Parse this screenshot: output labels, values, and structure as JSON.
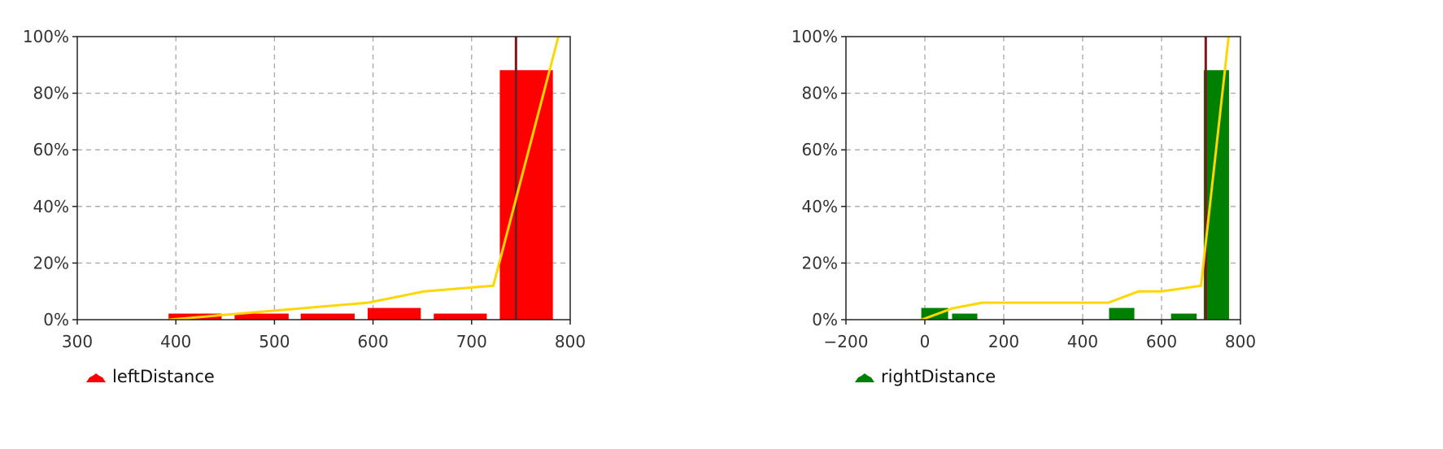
{
  "chart_data": [
    {
      "type": "bar",
      "title": "",
      "xlabel": "",
      "ylabel": "",
      "xlim": [
        300,
        800
      ],
      "ylim": [
        0,
        100
      ],
      "x_ticks": [
        "300",
        "400",
        "500",
        "600",
        "700",
        "800"
      ],
      "y_ticks": [
        "0%",
        "20%",
        "40%",
        "60%",
        "80%",
        "100%"
      ],
      "grid": true,
      "legend": {
        "label": "leftDistance",
        "placement": "bottom-left"
      },
      "bar_color": "#ff0000",
      "cumulative_color": "#ffd700",
      "marker_color": "#7a1a1a",
      "bins": [
        {
          "x0": 393,
          "x1": 446,
          "y": 2
        },
        {
          "x0": 460,
          "x1": 514,
          "y": 2
        },
        {
          "x0": 527,
          "x1": 581,
          "y": 2
        },
        {
          "x0": 595,
          "x1": 648,
          "y": 4
        },
        {
          "x0": 662,
          "x1": 715,
          "y": 2
        },
        {
          "x0": 729,
          "x1": 782,
          "y": 88
        }
      ],
      "cumulative": [
        {
          "x": 393,
          "y": 0
        },
        {
          "x": 460,
          "y": 2
        },
        {
          "x": 527,
          "y": 4
        },
        {
          "x": 595,
          "y": 6
        },
        {
          "x": 652,
          "y": 10
        },
        {
          "x": 722,
          "y": 12
        },
        {
          "x": 788,
          "y": 100
        }
      ],
      "marker_x": 745
    },
    {
      "type": "bar",
      "title": "",
      "xlabel": "",
      "ylabel": "",
      "xlim": [
        -200,
        800
      ],
      "ylim": [
        0,
        100
      ],
      "x_ticks": [
        "−200",
        "0",
        "200",
        "400",
        "600",
        "800"
      ],
      "y_ticks": [
        "0%",
        "20%",
        "40%",
        "60%",
        "80%",
        "100%"
      ],
      "grid": true,
      "legend": {
        "label": "rightDistance",
        "placement": "bottom-left"
      },
      "bar_color": "#008000",
      "cumulative_color": "#ffd700",
      "marker_color": "#7a1a1a",
      "bins": [
        {
          "x0": -8,
          "x1": 58,
          "y": 4
        },
        {
          "x0": 70,
          "x1": 132,
          "y": 2
        },
        {
          "x0": 468,
          "x1": 530,
          "y": 4
        },
        {
          "x0": 625,
          "x1": 688,
          "y": 2
        },
        {
          "x0": 708,
          "x1": 770,
          "y": 88
        }
      ],
      "cumulative": [
        {
          "x": -8,
          "y": 0
        },
        {
          "x": 70,
          "y": 4
        },
        {
          "x": 145,
          "y": 6
        },
        {
          "x": 300,
          "y": 6
        },
        {
          "x": 465,
          "y": 6
        },
        {
          "x": 542,
          "y": 10
        },
        {
          "x": 600,
          "y": 10
        },
        {
          "x": 700,
          "y": 12
        },
        {
          "x": 770,
          "y": 100
        }
      ],
      "marker_x": 712
    }
  ]
}
